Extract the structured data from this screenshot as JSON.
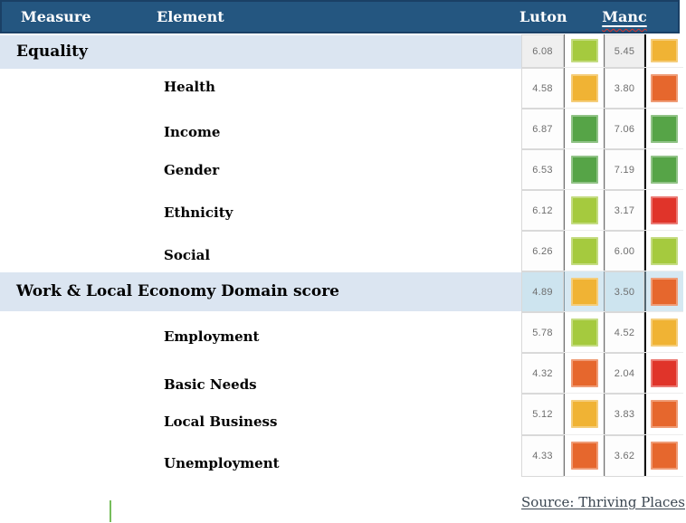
{
  "header": {
    "measure": "Measure",
    "element": "Element",
    "luton": "Luton",
    "manc": "Manc"
  },
  "table": {
    "rows": [
      {
        "label": "Equality",
        "type": "domain",
        "shaded": true,
        "luton": {
          "value": "6.08",
          "color": "yellow_green"
        },
        "manc": {
          "value": "5.45",
          "color": "amber"
        }
      },
      {
        "label": "Health",
        "type": "element",
        "luton": {
          "value": "4.58",
          "color": "amber"
        },
        "manc": {
          "value": "3.80",
          "color": "orange"
        }
      },
      {
        "label": "Income",
        "type": "element",
        "luton": {
          "value": "6.87",
          "color": "green"
        },
        "manc": {
          "value": "7.06",
          "color": "green"
        }
      },
      {
        "label": "Gender",
        "type": "element",
        "luton": {
          "value": "6.53",
          "color": "green"
        },
        "manc": {
          "value": "7.19",
          "color": "green"
        }
      },
      {
        "label": "Ethnicity",
        "type": "element",
        "luton": {
          "value": "6.12",
          "color": "yellow_green"
        },
        "manc": {
          "value": "3.17",
          "color": "red"
        }
      },
      {
        "label": "Social",
        "type": "element",
        "luton": {
          "value": "6.26",
          "color": "yellow_green"
        },
        "manc": {
          "value": "6.00",
          "color": "yellow_green"
        }
      },
      {
        "label": "Work & Local Economy Domain score",
        "type": "domain",
        "highlighted": true,
        "luton": {
          "value": "4.89",
          "color": "amber"
        },
        "manc": {
          "value": "3.50",
          "color": "orange"
        }
      },
      {
        "label": "Employment",
        "type": "element",
        "luton": {
          "value": "5.78",
          "color": "yellow_green"
        },
        "manc": {
          "value": "4.52",
          "color": "amber"
        }
      },
      {
        "label": "Basic Needs",
        "type": "element",
        "luton": {
          "value": "4.32",
          "color": "orange"
        },
        "manc": {
          "value": "2.04",
          "color": "red"
        }
      },
      {
        "label": "Local Business",
        "type": "element",
        "luton": {
          "value": "5.12",
          "color": "amber"
        },
        "manc": {
          "value": "3.83",
          "color": "orange"
        }
      },
      {
        "label": "Unemployment",
        "type": "element",
        "luton": {
          "value": "4.33",
          "color": "orange"
        },
        "manc": {
          "value": "3.62",
          "color": "orange"
        }
      }
    ]
  },
  "palette": {
    "green": "#56a447",
    "yellow_green": "#a5ca3e",
    "amber": "#f0b334",
    "orange": "#e6672d",
    "red": "#e0342a"
  },
  "colors": {
    "header_bg": "#245680",
    "header_border": "#1a4066",
    "band_bg": "#dbe5f1",
    "highlight_cell_bg": "#cde4ef",
    "highlight_overlay": "rgba(165,205,227,0.45)",
    "value_text": "#6e6e6e",
    "source_text": "#3a4550",
    "caret_green": "#76bd5c"
  },
  "footer": {
    "source": "Source: Thriving Places"
  }
}
